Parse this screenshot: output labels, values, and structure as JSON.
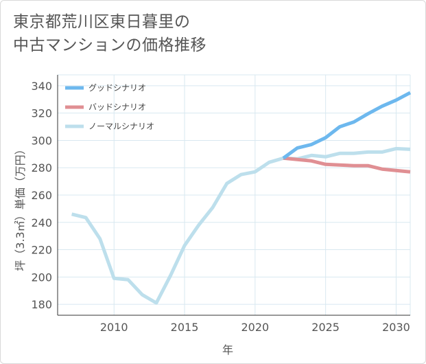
{
  "title": {
    "line1": "東京都荒川区東日暮里の",
    "line2": "中古マンションの価格推移"
  },
  "colors": {
    "good": "#6db8ee",
    "bad": "#e08f93",
    "normal": "#bddfec",
    "grid": "#d8e8f0",
    "axis": "#333333"
  },
  "chart_data": {
    "type": "line",
    "xlabel": "年",
    "ylabel": "坪（3.3㎡）単価（万円）",
    "xlim": [
      2006,
      2031
    ],
    "ylim": [
      172,
      348
    ],
    "x_ticks": [
      2010,
      2015,
      2020,
      2025,
      2030
    ],
    "y_ticks": [
      180,
      200,
      220,
      240,
      260,
      280,
      300,
      320,
      340
    ],
    "legend_position": "top-left",
    "grid": true,
    "series": [
      {
        "name": "グッドシナリオ",
        "color": "#6db8ee",
        "x": [
          2022,
          2023,
          2024,
          2025,
          2026,
          2027,
          2028,
          2029,
          2030,
          2031
        ],
        "y": [
          287,
          294.5,
          297,
          302,
          310,
          313.5,
          319.5,
          325,
          329.5,
          335
        ]
      },
      {
        "name": "バッドシナリオ",
        "color": "#e08f93",
        "x": [
          2022,
          2023,
          2024,
          2025,
          2026,
          2027,
          2028,
          2029,
          2030,
          2031
        ],
        "y": [
          287,
          286,
          285,
          282.5,
          282,
          281.5,
          281.5,
          279,
          278,
          277
        ]
      },
      {
        "name": "ノーマルシナリオ",
        "color": "#bddfec",
        "x": [
          2007,
          2008,
          2009,
          2010,
          2011,
          2012,
          2013,
          2014,
          2015,
          2016,
          2017,
          2018,
          2019,
          2020,
          2021,
          2022,
          2023,
          2024,
          2025,
          2026,
          2027,
          2028,
          2029,
          2030,
          2031
        ],
        "y": [
          246,
          243.5,
          228,
          199,
          198,
          187,
          181,
          201,
          223,
          238,
          251,
          268.5,
          275,
          277,
          284,
          287,
          286.5,
          289,
          288,
          290.5,
          290.5,
          291.5,
          291.5,
          294,
          293.5
        ]
      }
    ]
  }
}
